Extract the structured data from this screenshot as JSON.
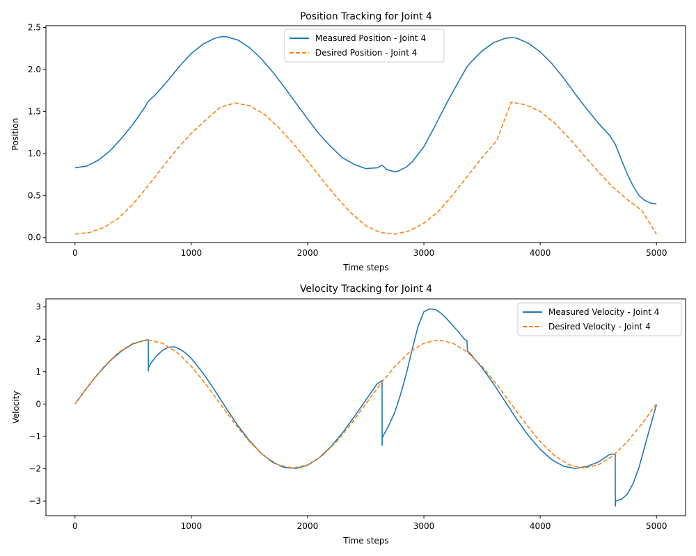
{
  "colors": {
    "measured": "#1f77b4",
    "desired": "#ff7f0e"
  },
  "chart_data": [
    {
      "type": "line",
      "title": "Position Tracking for Joint 4",
      "xlabel": "Time steps",
      "ylabel": "Position",
      "xlim": [
        -250,
        5250
      ],
      "ylim": [
        -0.06,
        2.52
      ],
      "xticks": [
        0,
        1000,
        2000,
        3000,
        4000,
        5000
      ],
      "yticks": [
        0.0,
        0.5,
        1.0,
        1.5,
        2.0,
        2.5
      ],
      "ytick_labels": [
        "0.0",
        "0.5",
        "1.0",
        "1.5",
        "2.0",
        "2.5"
      ],
      "grid": false,
      "legend_position": "upper center",
      "series": [
        {
          "name": "Measured Position - Joint 4",
          "style": "solid",
          "x": [
            0,
            100,
            200,
            300,
            400,
            500,
            600,
            630,
            700,
            800,
            900,
            1000,
            1100,
            1200,
            1260,
            1300,
            1400,
            1500,
            1600,
            1700,
            1800,
            1900,
            2000,
            2100,
            2200,
            2300,
            2400,
            2500,
            2600,
            2640,
            2680,
            2750,
            2780,
            2850,
            2900,
            3000,
            3100,
            3200,
            3300,
            3370,
            3400,
            3500,
            3600,
            3700,
            3760,
            3800,
            3900,
            4000,
            4100,
            4200,
            4300,
            4400,
            4500,
            4600,
            4645,
            4700,
            4750,
            4800,
            4850,
            4900,
            4950,
            5000
          ],
          "y": [
            0.83,
            0.85,
            0.92,
            1.03,
            1.18,
            1.35,
            1.55,
            1.62,
            1.71,
            1.87,
            2.04,
            2.19,
            2.3,
            2.37,
            2.39,
            2.39,
            2.35,
            2.26,
            2.13,
            1.97,
            1.79,
            1.6,
            1.41,
            1.23,
            1.08,
            0.95,
            0.87,
            0.82,
            0.83,
            0.86,
            0.81,
            0.78,
            0.79,
            0.84,
            0.9,
            1.08,
            1.34,
            1.61,
            1.86,
            2.03,
            2.08,
            2.22,
            2.32,
            2.37,
            2.38,
            2.37,
            2.31,
            2.21,
            2.07,
            1.9,
            1.71,
            1.53,
            1.36,
            1.21,
            1.11,
            0.92,
            0.75,
            0.61,
            0.5,
            0.44,
            0.41,
            0.4
          ]
        },
        {
          "name": "Desired Position - Joint 4",
          "style": "dashed",
          "x": [
            0,
            125,
            250,
            375,
            500,
            625,
            750,
            875,
            1000,
            1125,
            1250,
            1375,
            1500,
            1625,
            1750,
            1875,
            2000,
            2125,
            2250,
            2375,
            2500,
            2625,
            2750,
            2875,
            3000,
            3125,
            3250,
            3375,
            3500,
            3625,
            3750,
            3875,
            4000,
            4125,
            4250,
            4375,
            4500,
            4625,
            4750,
            4875,
            5000
          ],
          "y": [
            0.04,
            0.06,
            0.12,
            0.23,
            0.4,
            0.61,
            0.83,
            1.05,
            1.24,
            1.4,
            1.55,
            1.6,
            1.57,
            1.47,
            1.31,
            1.12,
            0.91,
            0.69,
            0.48,
            0.29,
            0.14,
            0.06,
            0.04,
            0.08,
            0.17,
            0.31,
            0.51,
            0.73,
            0.95,
            1.15,
            1.61,
            1.58,
            1.5,
            1.36,
            1.18,
            0.98,
            0.78,
            0.6,
            0.45,
            0.32,
            0.04
          ]
        }
      ]
    },
    {
      "type": "line",
      "title": "Velocity Tracking for Joint 4",
      "xlabel": "Time steps",
      "ylabel": "Velocity",
      "xlim": [
        -250,
        5250
      ],
      "ylim": [
        -3.45,
        3.25
      ],
      "xticks": [
        0,
        1000,
        2000,
        3000,
        4000,
        5000
      ],
      "yticks": [
        -3,
        -2,
        -1,
        0,
        1,
        2,
        3
      ],
      "ytick_labels": [
        "−3",
        "−2",
        "−1",
        "0",
        "1",
        "2",
        "3"
      ],
      "grid": false,
      "legend_position": "upper right",
      "series": [
        {
          "name": "Measured Velocity - Joint 4",
          "style": "solid",
          "x": [
            0,
            100,
            200,
            300,
            400,
            500,
            600,
            630,
            631,
            632,
            650,
            700,
            750,
            800,
            850,
            900,
            950,
            1000,
            1100,
            1200,
            1300,
            1400,
            1500,
            1600,
            1700,
            1800,
            1900,
            2000,
            2100,
            2200,
            2300,
            2400,
            2500,
            2600,
            2640,
            2641,
            2642,
            2650,
            2700,
            2750,
            2800,
            2850,
            2900,
            2950,
            3000,
            3050,
            3100,
            3150,
            3200,
            3250,
            3300,
            3350,
            3370,
            3375,
            3400,
            3500,
            3600,
            3700,
            3800,
            3900,
            4000,
            4100,
            4200,
            4300,
            4400,
            4500,
            4600,
            4645,
            4646,
            4650,
            4660,
            4700,
            4750,
            4800,
            4850,
            4900,
            4950,
            5000
          ],
          "y": [
            0.0,
            0.49,
            0.94,
            1.33,
            1.64,
            1.86,
            1.97,
            1.98,
            1.02,
            1.12,
            1.25,
            1.48,
            1.65,
            1.75,
            1.77,
            1.7,
            1.58,
            1.41,
            0.96,
            0.43,
            -0.13,
            -0.66,
            -1.13,
            -1.52,
            -1.8,
            -1.96,
            -1.99,
            -1.89,
            -1.66,
            -1.32,
            -0.89,
            -0.4,
            0.12,
            0.63,
            0.72,
            -1.28,
            -1.05,
            -0.98,
            -0.65,
            -0.25,
            0.3,
            0.95,
            1.7,
            2.4,
            2.85,
            2.94,
            2.92,
            2.8,
            2.62,
            2.42,
            2.22,
            2.0,
            1.96,
            1.63,
            1.55,
            1.12,
            0.62,
            0.07,
            -0.48,
            -0.98,
            -1.4,
            -1.72,
            -1.92,
            -1.99,
            -1.93,
            -1.79,
            -1.55,
            -1.55,
            -3.15,
            -3.0,
            -2.98,
            -2.94,
            -2.78,
            -2.45,
            -1.95,
            -1.3,
            -0.65,
            -0.02
          ]
        },
        {
          "name": "Desired Velocity - Joint 4",
          "style": "dashed",
          "x": [
            0,
            125,
            250,
            375,
            500,
            625,
            750,
            875,
            1000,
            1125,
            1250,
            1375,
            1500,
            1625,
            1750,
            1875,
            2000,
            2125,
            2250,
            2375,
            2500,
            2625,
            2750,
            2875,
            3000,
            3125,
            3250,
            3375,
            3500,
            3625,
            3750,
            3875,
            4000,
            4125,
            4250,
            4375,
            4500,
            4625,
            4750,
            4875,
            5000
          ],
          "y": [
            0.0,
            0.61,
            1.16,
            1.6,
            1.88,
            1.98,
            1.88,
            1.6,
            1.16,
            0.61,
            0.0,
            -0.61,
            -1.16,
            -1.6,
            -1.88,
            -1.98,
            -1.88,
            -1.6,
            -1.16,
            -0.61,
            0.0,
            0.61,
            1.16,
            1.6,
            1.88,
            1.98,
            1.88,
            1.6,
            1.16,
            0.61,
            0.0,
            -0.61,
            -1.16,
            -1.6,
            -1.88,
            -1.98,
            -1.88,
            -1.6,
            -1.16,
            -0.61,
            0.0
          ]
        }
      ]
    }
  ]
}
